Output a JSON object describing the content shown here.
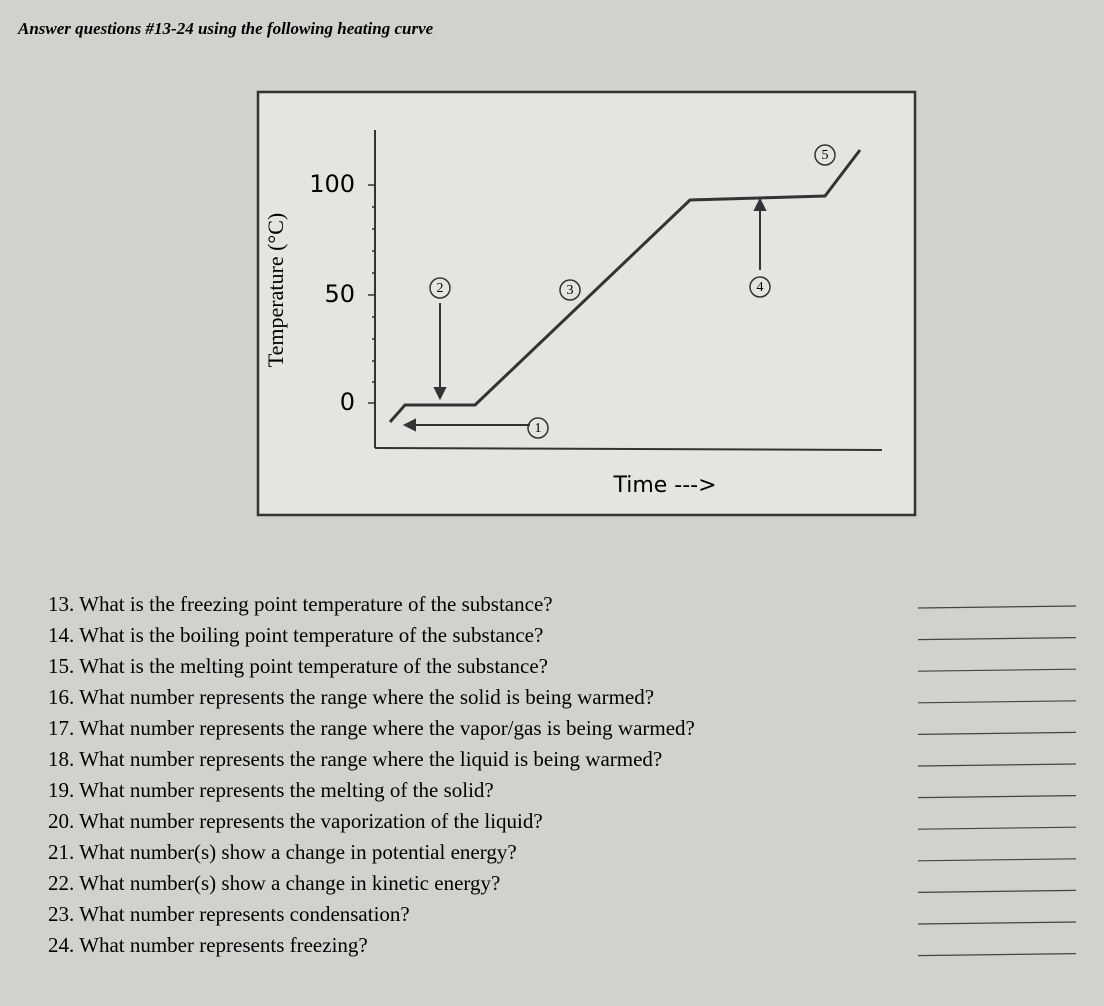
{
  "header": {
    "instruction": "Answer questions #13-24 using the following heating curve"
  },
  "figure": {
    "y_axis_label": "Temperature (°C)",
    "x_axis_label": "Time --->",
    "tick_labels": [
      "100",
      "50",
      "0"
    ],
    "markers": [
      "1",
      "2",
      "3",
      "4",
      "5"
    ]
  },
  "questions": [
    "13. What is the freezing point temperature of the substance?",
    "14. What is the boiling point temperature of the substance?",
    "15. What is the melting point temperature of the substance?",
    "16. What number represents the range where the solid is being warmed?",
    "17. What number represents the range where the vapor/gas is being warmed?",
    "18. What number represents the range where the liquid is being warmed?",
    "19. What number represents the melting of the solid?",
    "20. What number represents the vaporization of the liquid?",
    "21. What number(s) show a change in potential energy?",
    "22. What number(s) show a change in kinetic energy?",
    "23. What number represents condensation?",
    "24. What number represents freezing?"
  ]
}
